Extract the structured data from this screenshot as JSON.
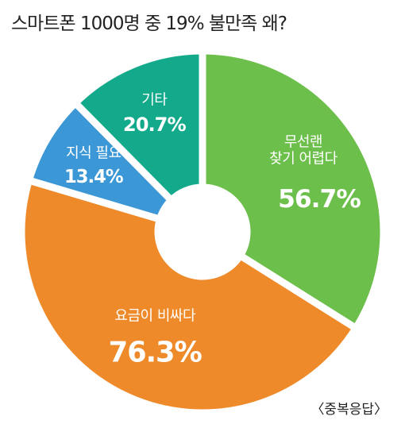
{
  "chart_data": {
    "type": "donut",
    "title": "스마트폰 1000명 중 19% 불만족 왜?",
    "note": "〈중복응답〉",
    "categories": [
      "무선랜\n찾기 어렵다",
      "요금이 비싸다",
      "지식 필요",
      "기타"
    ],
    "values": [
      56.7,
      76.3,
      13.4,
      20.7
    ],
    "value_labels": [
      "56.7%",
      "76.3%",
      "13.4%",
      "20.7%"
    ],
    "colors": [
      "#6dbf4b",
      "#ef8a2a",
      "#3b97d5",
      "#13a98b"
    ]
  }
}
